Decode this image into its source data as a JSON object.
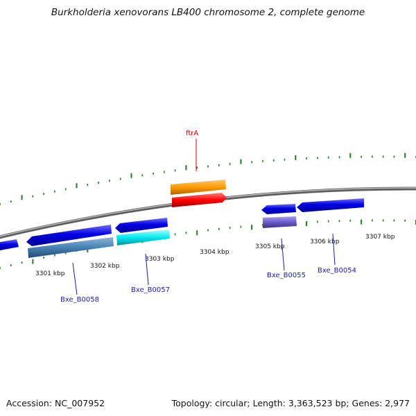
{
  "title": "Burkholderia xenovorans LB400 chromosome 2, complete genome",
  "footer": {
    "accession": "Accession: NC_007952",
    "summary": "Topology: circular; Length: 3,363,523 bp; Genes: 2,977"
  },
  "tick_labels": [
    "3301 kbp",
    "3302 kbp",
    "3303 kbp",
    "3304 kbp",
    "3305 kbp",
    "3306 kbp",
    "3307 kbp"
  ],
  "gene_labels": [
    {
      "text": "ftrA",
      "color": "#cc0000"
    },
    {
      "text": "Bxe_B0058",
      "color": "#1a1aa6"
    },
    {
      "text": "Bxe_B0057",
      "color": "#1a1aa6"
    },
    {
      "text": "Bxe_B0055",
      "color": "#1a1aa6"
    },
    {
      "text": "Bxe_B0054",
      "color": "#1a1aa6"
    }
  ],
  "colors": {
    "backbone": "#8a8a8a",
    "ticks": "#1f7a1f",
    "cds_blue": "#0000e0",
    "steelblue": "#4682b4",
    "cyan": "#00e5ee",
    "orange": "#ff9900",
    "red": "#ff0000",
    "slateblue": "#6a5acd"
  }
}
